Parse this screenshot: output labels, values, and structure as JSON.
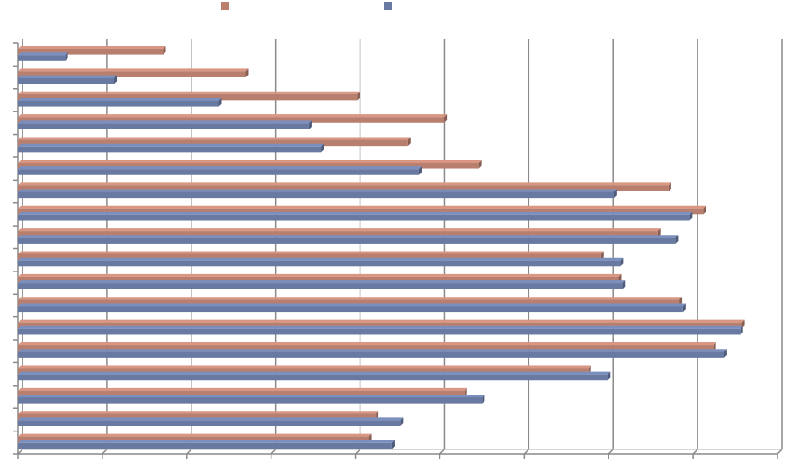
{
  "chart_data": {
    "type": "bar",
    "orientation": "horizontal",
    "title": "",
    "xlabel": "",
    "ylabel": "",
    "xlim": [
      0,
      90
    ],
    "gridlines": true,
    "legend_position": "top",
    "series": [
      {
        "name": "",
        "color": "#b87f6e",
        "values": [
          17.2,
          27.0,
          40.2,
          50.5,
          46.2,
          54.6,
          77.1,
          81.2,
          75.8,
          69.1,
          71.2,
          78.4,
          85.8,
          82.4,
          67.6,
          52.9,
          42.4,
          41.6
        ]
      },
      {
        "name": "",
        "color": "#6879a2",
        "values": [
          5.6,
          11.4,
          23.8,
          34.5,
          35.9,
          47.5,
          70.6,
          79.6,
          77.9,
          71.4,
          71.6,
          78.8,
          85.6,
          83.7,
          69.9,
          55.0,
          45.3,
          44.3
        ]
      }
    ]
  }
}
